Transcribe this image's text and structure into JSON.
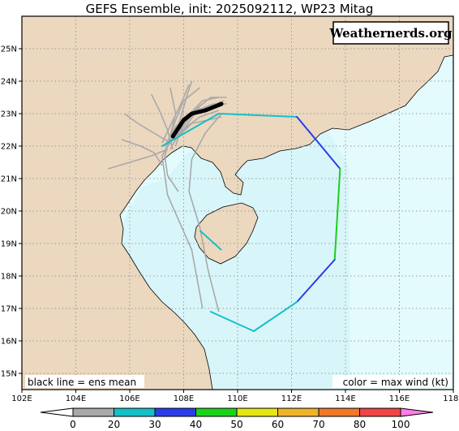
{
  "title": "GEFS Ensemble, init: 2025092112, WP23 Mitag",
  "brand": "Weathernerds.org",
  "legend_left": "black line = ens mean",
  "legend_right": "color = max wind (kt)",
  "colors": {
    "land": "#EBD8BF",
    "ocean": "#E3FBFD",
    "shaded_ocean": "#D8F6FA",
    "grid": "#9A9A9A",
    "member_track": "#A9A9A9",
    "ens_mean": "#000000",
    "cone_teal": "#14C0C8",
    "cone_blue": "#2A3DEA",
    "cone_green": "#19D219"
  },
  "map": {
    "lon_range": [
      102,
      118
    ],
    "lat_range": [
      14.5,
      26
    ],
    "lon_ticks": [
      "102E",
      "104E",
      "106E",
      "108E",
      "110E",
      "112E",
      "114E",
      "116E",
      "118E"
    ],
    "lat_ticks": [
      "15N",
      "16N",
      "17N",
      "18N",
      "19N",
      "20N",
      "21N",
      "22N",
      "23N",
      "24N",
      "25N"
    ],
    "ens_mean_track": [
      [
        107.6,
        22.3
      ],
      [
        108.0,
        22.8
      ],
      [
        108.3,
        23.0
      ],
      [
        108.8,
        23.1
      ],
      [
        109.4,
        23.3
      ]
    ],
    "wind_polygon": [
      {
        "lon": 107.2,
        "lat": 22.0,
        "color": "cone_teal"
      },
      {
        "lon": 109.3,
        "lat": 23.0,
        "color": "cone_teal"
      },
      {
        "lon": 112.2,
        "lat": 22.9,
        "color": "cone_blue"
      },
      {
        "lon": 113.8,
        "lat": 21.3,
        "color": "cone_green"
      },
      {
        "lon": 113.6,
        "lat": 18.5,
        "color": "cone_blue"
      },
      {
        "lon": 112.2,
        "lat": 17.2,
        "color": "cone_teal"
      },
      {
        "lon": 110.6,
        "lat": 16.3,
        "color": "cone_teal"
      },
      {
        "lon": 109.0,
        "lat": 16.9,
        "color": "cone_teal"
      }
    ]
  },
  "colorbar": {
    "labels": [
      "0",
      "20",
      "30",
      "40",
      "50",
      "60",
      "70",
      "80",
      "100"
    ],
    "colors": [
      "#A9A9A9",
      "#14C0C8",
      "#2A3DEA",
      "#19D219",
      "#E6E614",
      "#F0B428",
      "#F07828",
      "#F04646",
      "#E6289A"
    ],
    "end_color": "#FF7DE8"
  }
}
